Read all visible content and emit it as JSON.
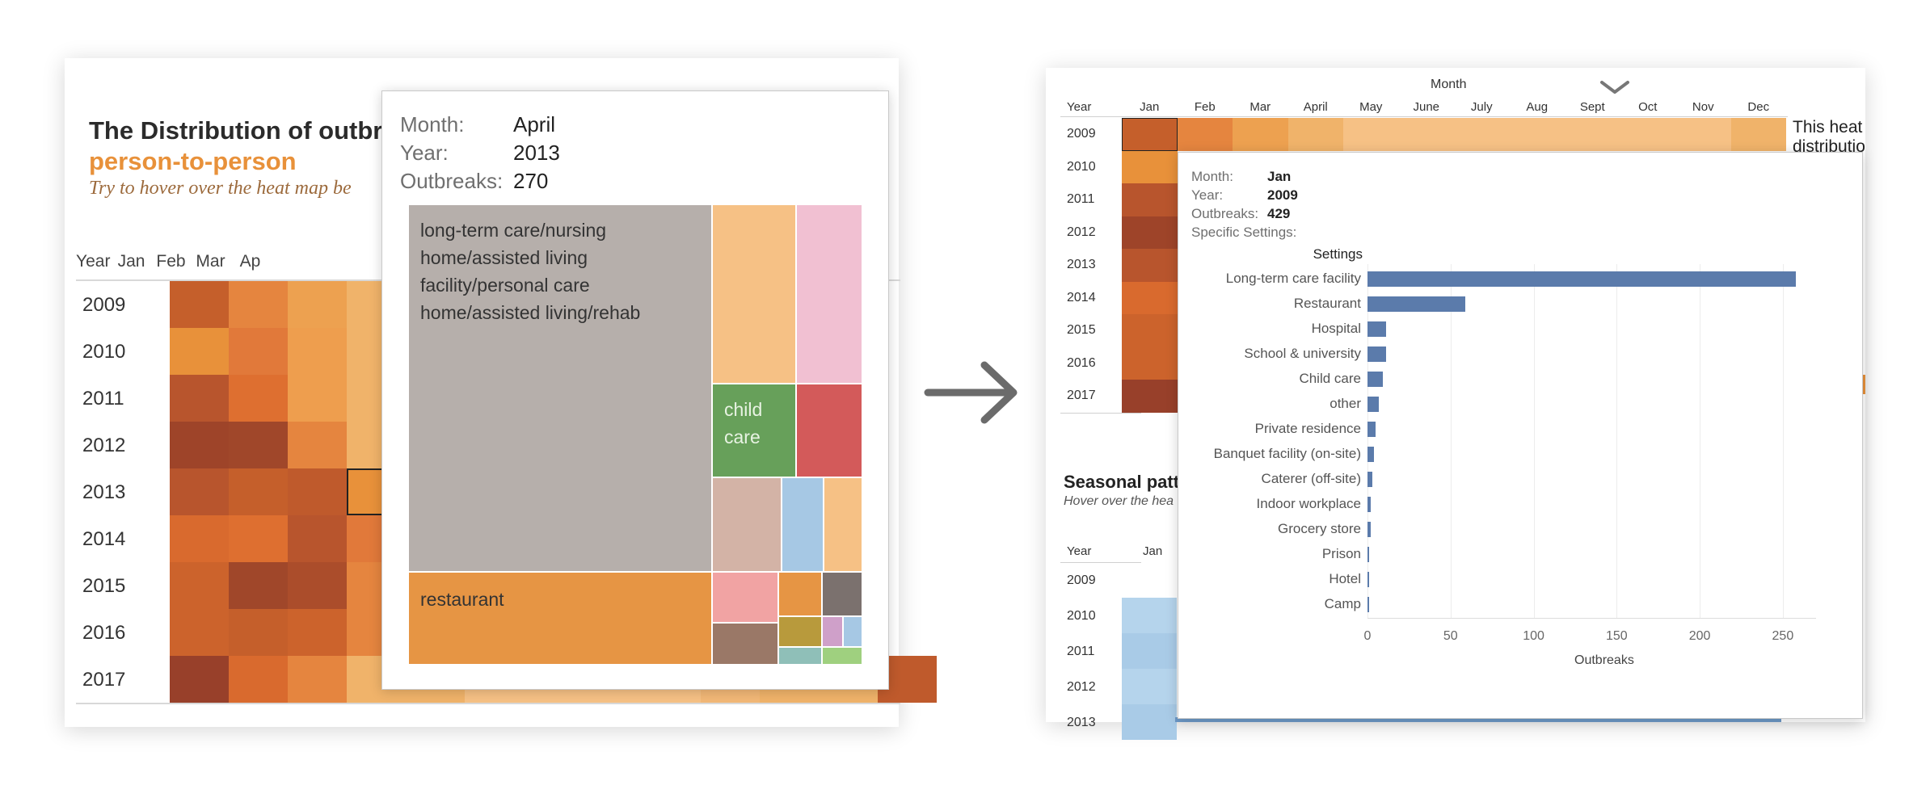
{
  "left_panel": {
    "title": "The Distribution of outbre",
    "subtitle": "person-to-person",
    "hint": "Try to hover over the heat map be",
    "header_year": "Year",
    "months": [
      "Jan",
      "Feb",
      "Mar",
      "Ap"
    ],
    "years": [
      "2009",
      "2010",
      "2011",
      "2012",
      "2013",
      "2014",
      "2015",
      "2016",
      "2017"
    ],
    "tooltip": {
      "month_label": "Month:",
      "month_value": "April",
      "year_label": "Year:",
      "year_value": "2013",
      "outbreaks_label": "Outbreaks:",
      "outbreaks_value": "270",
      "treemap": {
        "ltc": "long-term care/nursing home/assisted living facility/personal care home/assisted living/rehab",
        "restaurant": "restaurant",
        "child_care": "child care"
      }
    }
  },
  "right_panel": {
    "month_header": "Month",
    "header_year": "Year",
    "months": [
      "Jan",
      "Feb",
      "Mar",
      "April",
      "May",
      "June",
      "July",
      "Aug",
      "Sept",
      "Oct",
      "Nov",
      "Dec"
    ],
    "years": [
      "2009",
      "2010",
      "2011",
      "2012",
      "2013",
      "2014",
      "2015",
      "2016",
      "2017"
    ],
    "side_text_1": "This heat",
    "side_text_2": "distributio",
    "seasonal_title": "Seasonal patt",
    "seasonal_hint": "Hover over the hea",
    "seasonal_header_year": "Year",
    "seasonal_header_jan": "Jan",
    "seasonal_years": [
      "2009",
      "2010",
      "2011",
      "2012",
      "2013"
    ],
    "tooltip": {
      "month_label": "Month:",
      "month_value": "Jan",
      "year_label": "Year:",
      "year_value": "2009",
      "outbreaks_label": "Outbreaks:",
      "outbreaks_value": "429",
      "settings_label": "Specific Settings:",
      "chart_heading": "Settings"
    }
  },
  "chart_data": {
    "type": "bar",
    "orientation": "horizontal",
    "categories": [
      "Long-term care facility",
      "Restaurant",
      "Hospital",
      "School & university",
      "Child care",
      "other",
      "Private residence",
      "Banquet facility (on-site)",
      "Caterer (off-site)",
      "Indoor workplace",
      "Grocery store",
      "Prison",
      "Hotel",
      "Camp"
    ],
    "values": [
      258,
      59,
      11,
      11,
      9,
      7,
      5,
      4,
      3,
      2,
      2,
      1,
      1,
      1
    ],
    "title": "Settings",
    "xlabel": "Outbreaks",
    "ylabel": "",
    "xlim": [
      0,
      270
    ],
    "xticks": [
      "0",
      "50",
      "100",
      "150",
      "200",
      "250"
    ],
    "bar_color": "#5b7bab",
    "grid": true
  },
  "colors": {
    "accent_orange": "#e8913a",
    "arrow": "#6b6b6b",
    "bar": "#5b7bab"
  },
  "icons": {
    "arrow": "right-arrow-icon",
    "chevron": "chevron-down-icon"
  }
}
